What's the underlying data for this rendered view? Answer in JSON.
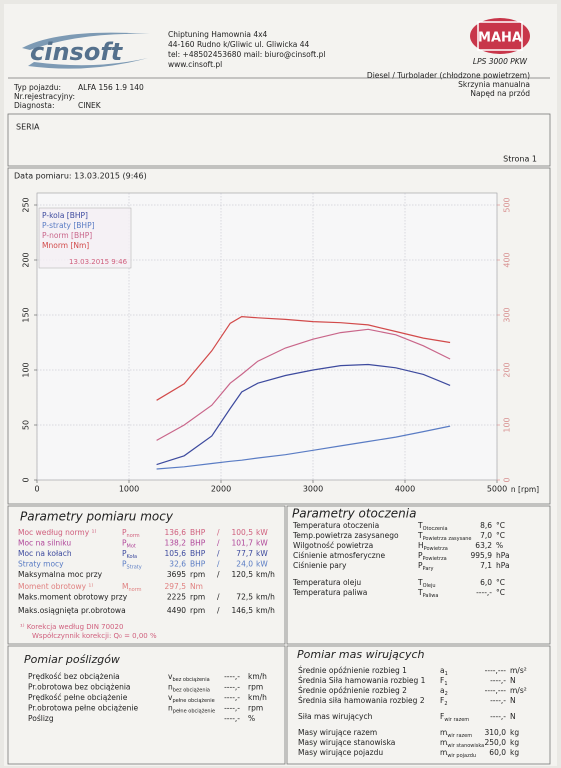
{
  "header": {
    "logo": "cinsoft",
    "company": [
      "Chiptuning Hamownia 4x4",
      "44-160 Rudno k/Gliwic ul. Gliwicka 44",
      "tel: +48502453680 mail: biuro@cinsoft.pl",
      "www.cinsoft.pl"
    ],
    "brand": "MAHA",
    "model": "LPS 3000 PKW"
  },
  "vehicle": {
    "fields": [
      {
        "label": "Typ pojazdu:",
        "value": "ALFA 156 1.9 140"
      },
      {
        "label": "Nr.rejestracyjny:"
      },
      {
        "label": "Diagnosta:",
        "value": "CINEK"
      }
    ],
    "specs": [
      "Diesel / Turbolader (chłodzone powietrzem)",
      "Skrzynia manualna",
      "Napęd na przód"
    ]
  },
  "series_label": "SERIA",
  "page": "Strona 1",
  "date": "Data pomiaru: 13.03.2015 (9:46)",
  "chart_data": {
    "type": "line",
    "x_label": "n [rpm]",
    "x": [
      1300,
      1600,
      1900,
      2100,
      2225,
      2400,
      2700,
      3000,
      3300,
      3600,
      3900,
      4200,
      4490
    ],
    "xlim": [
      0,
      5000
    ],
    "xticks": [
      0,
      1000,
      2000,
      3000,
      4000,
      5000
    ],
    "ylim": [
      0,
      250
    ],
    "yticks": [
      0,
      50,
      100,
      150,
      200,
      250
    ],
    "y2lim": [
      0,
      500
    ],
    "y2ticks": [
      0,
      100,
      200,
      300,
      400,
      500
    ],
    "grid": true,
    "legend": "upper left",
    "legend_date": "13.03.2015 9:46",
    "series": [
      {
        "name": "P-kola [BHP]",
        "color": "#3d4a9e",
        "values": [
          14,
          22,
          40,
          65,
          80,
          88,
          95,
          100,
          104,
          105,
          102,
          96,
          86
        ]
      },
      {
        "name": "P-straty [BHP]",
        "color": "#5a7cc4",
        "values": [
          10,
          12,
          15,
          17,
          18,
          20,
          23,
          27,
          31,
          35,
          39,
          44,
          49
        ]
      },
      {
        "name": "P-norm [BHP]",
        "color": "#c9668a",
        "values": [
          36,
          50,
          68,
          88,
          96,
          108,
          120,
          128,
          134,
          137,
          132,
          122,
          110
        ]
      },
      {
        "name": "Mnorm [Nm]",
        "color": "#d24a4a",
        "axis": "y2",
        "values": [
          145,
          175,
          235,
          285,
          297,
          295,
          292,
          288,
          286,
          282,
          270,
          258,
          250
        ]
      }
    ]
  },
  "power": {
    "title": "Parametry pomiaru mocy",
    "blocks": [
      [
        {
          "label": "Moc według normy ¹⁾",
          "sym": "P",
          "sub": "norm",
          "value": "136,6",
          "unit": "BHP",
          "sep": "/",
          "value2": "100,5",
          "unit2": "kW",
          "color": "#d0607e"
        },
        {
          "label": "Moc na silniku",
          "sym": "P",
          "sub": "Mot",
          "value": "138,2",
          "unit": "BHP",
          "sep": "/",
          "value2": "101,7",
          "unit2": "kW",
          "color": "#b0479a"
        },
        {
          "label": "Moc na kołach",
          "sym": "P",
          "sub": "Koła",
          "value": "105,6",
          "unit": "BHP",
          "sep": "/",
          "value2": "77,7",
          "unit2": "kW",
          "color": "#3d4a9e"
        },
        {
          "label": "Straty mocy",
          "sym": "P",
          "sub": "Straty",
          "value": "32,6",
          "unit": "BHP",
          "sep": "/",
          "value2": "24,0",
          "unit2": "kW",
          "color": "#5a7cc4"
        },
        {
          "label": "Maksymalna moc przy",
          "value": "3695",
          "unit": "rpm",
          "sep": "/",
          "value2": "120,5",
          "unit2": "km/h",
          "color": "#222222"
        }
      ],
      [
        {
          "label": "Moment obrotowy ¹⁾",
          "sym": "M",
          "sub": "norm",
          "value": "297,5",
          "unit": "Nm",
          "color": "#e08080"
        },
        {
          "label": "Maks.moment obrotowy przy",
          "value": "2225",
          "unit": "rpm",
          "sep": "/",
          "value2": "72,5",
          "unit2": "km/h",
          "color": "#222222"
        }
      ],
      [
        {
          "label": "Maks.osiągnięta pr.obrotowa",
          "value": "4490",
          "unit": "rpm",
          "sep": "/",
          "value2": "146,5",
          "unit2": "km/h",
          "color": "#222222"
        }
      ]
    ],
    "notes": [
      "¹⁾ Korekcja według DIN 70020",
      "Współczynnik korekcji: Q₀ = 0,00 %"
    ]
  },
  "ambient": {
    "title": "Parametry otoczenia",
    "blocks": [
      [
        {
          "label": "Temperatura otoczenia",
          "sym": "T",
          "sub": "Otoczenia",
          "value": "8,6",
          "unit": "°C"
        },
        {
          "label": "Temp.powietrza zasysanego",
          "sym": "T",
          "sub": "Powietrza zasysane",
          "value": "7,0",
          "unit": "°C"
        },
        {
          "label": "Wilgotność powietrza",
          "sym": "H",
          "sub": "Powietrza",
          "value": "63,2",
          "unit": "%"
        },
        {
          "label": "Ciśnienie atmosferyczne",
          "sym": "P",
          "sub": "Powietrza",
          "value": "995,9",
          "unit": "hPa"
        },
        {
          "label": "Ciśnienie pary",
          "sym": "P",
          "sub": "Pary",
          "value": "7,1",
          "unit": "hPa"
        }
      ],
      [
        {
          "label": "Temperatura oleju",
          "sym": "T",
          "sub": "Oleju",
          "value": "6,0",
          "unit": "°C"
        },
        {
          "label": "Temperatura paliwa",
          "sym": "T",
          "sub": "Paliwa",
          "value": "----,-",
          "unit": "°C"
        }
      ]
    ]
  },
  "slip": {
    "title": "Pomiar poślizgów",
    "blocks": [
      [
        {
          "label": "Prędkość bez obciążenia",
          "sym": "v",
          "sub": "bez obciążenia",
          "value": "----,-",
          "unit": "km/h"
        },
        {
          "label": "Pr.obrotowa bez obciążenia",
          "sym": "n",
          "sub": "bez obciążenia",
          "value": "----,-",
          "unit": "rpm"
        },
        {
          "label": "Prędkość pełne obciążenie",
          "sym": "v",
          "sub": "pełne obciążenie",
          "value": "----,-",
          "unit": "km/h"
        },
        {
          "label": "Pr.obrotowa pełne obciążenie",
          "sym": "n",
          "sub": "pełne obciążenie",
          "value": "----,-",
          "unit": "rpm"
        }
      ],
      [
        {
          "label": "Poślizg",
          "value": "----,-",
          "unit": "%"
        }
      ]
    ]
  },
  "masses": {
    "title": "Pomiar mas wirujących",
    "blocks": [
      [
        {
          "label": "Średnie opóźnienie rozbieg 1",
          "sym": "a",
          "sub": "1",
          "value": "----,---",
          "unit": "m/s²"
        },
        {
          "label": "Średnia Siła hamowania rozbieg 1",
          "sym": "F",
          "sub": "1",
          "value": "----,-",
          "unit": "N"
        },
        {
          "label": "Średnie opóźnienie rozbieg 2",
          "sym": "a",
          "sub": "2",
          "value": "----,---",
          "unit": "m/s²"
        },
        {
          "label": "Średnia siła hamowania rozbieg 2",
          "sym": "F",
          "sub": "2",
          "value": "----,-",
          "unit": "N"
        }
      ],
      [
        {
          "label": "Siła mas wirujących",
          "sym": "F",
          "sub": "wir razem",
          "value": "----,-",
          "unit": "N"
        }
      ],
      [
        {
          "label": "Masy wirujące razem",
          "sym": "m",
          "sub": "wir razem",
          "value": "310,0",
          "unit": "kg"
        },
        {
          "label": "Masy wirujące stanowiska",
          "sym": "m",
          "sub": "wir stanowiska",
          "value": "250,0",
          "unit": "kg"
        },
        {
          "label": "Masy wirujące pojazdu",
          "sym": "m",
          "sub": "wir pojazdu",
          "value": "60,0",
          "unit": "kg"
        }
      ]
    ]
  }
}
